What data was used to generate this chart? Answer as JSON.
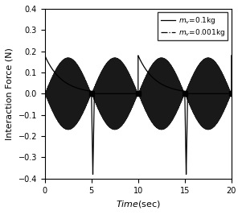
{
  "xlim": [
    0,
    20
  ],
  "ylim": [
    -0.4,
    0.4
  ],
  "xticks": [
    0,
    5,
    10,
    15,
    20
  ],
  "yticks": [
    -0.4,
    -0.3,
    -0.2,
    -0.1,
    0.0,
    0.1,
    0.2,
    0.3,
    0.4
  ],
  "xlabel": "Time(sec)",
  "ylabel": "Interaction Force (N)",
  "legend_line1": "m_v =0.1kg",
  "legend_line2": "m_v =0.001kg",
  "bg_color": "#ffffff",
  "period": 10.0,
  "free_dur": 5.0,
  "contact_dur": 5.0,
  "osc_freq": 20.0,
  "sig1_init": 0.18,
  "sig1_decay": 0.55,
  "sig2_max_amp": 0.17,
  "spike_amp": -0.38,
  "spike_rise": 0.15,
  "spike_fall": 0.4,
  "label_fontsize": 8,
  "tick_fontsize": 7,
  "legend_fontsize": 6.5
}
